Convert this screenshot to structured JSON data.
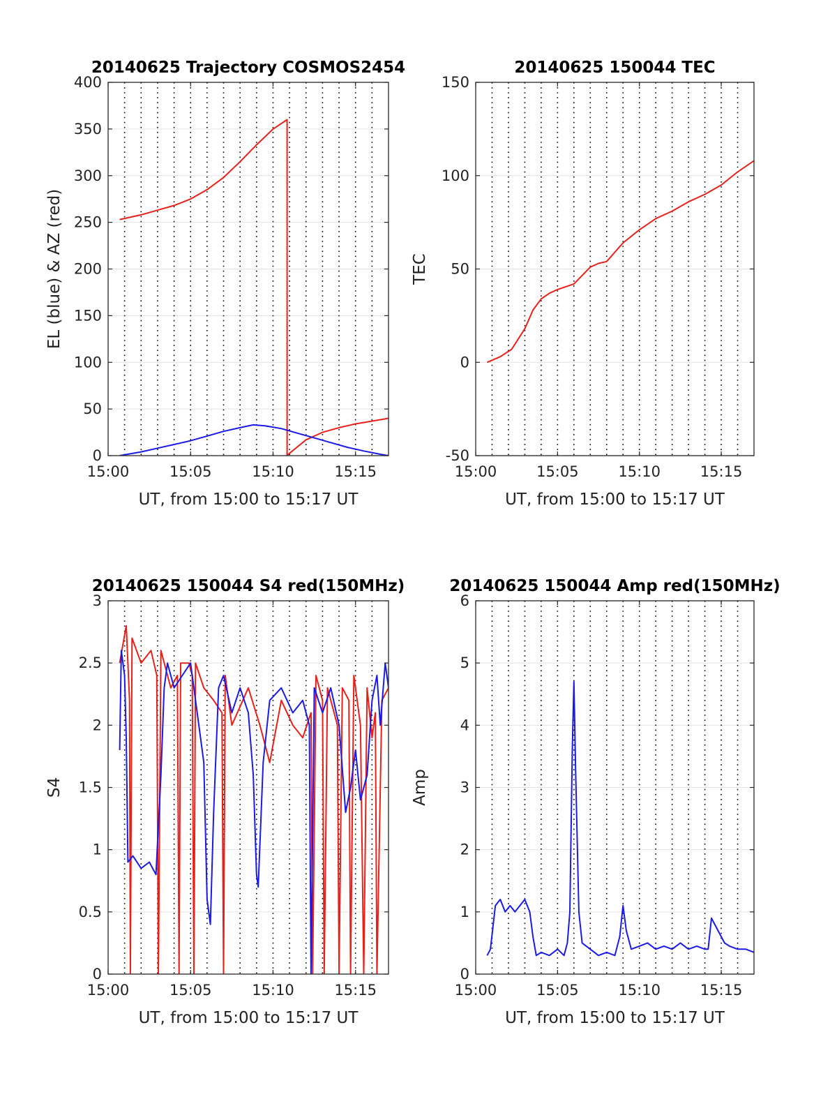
{
  "chart_data": [
    {
      "type": "line",
      "title": "20140625 Trajectory COSMOS2454",
      "xlabel": "UT, from 15:00 to 15:17 UT",
      "ylabel": "EL (blue) & AZ (red)",
      "xlim": [
        0,
        17
      ],
      "ylim": [
        0,
        400
      ],
      "xticks": [
        0,
        5,
        10,
        15
      ],
      "xticklabels": [
        "15:00",
        "15:05",
        "15:10",
        "15:15"
      ],
      "yticks": [
        0,
        50,
        100,
        150,
        200,
        250,
        300,
        350,
        400
      ],
      "yticklabels": [
        "0",
        "50",
        "100",
        "150",
        "200",
        "250",
        "300",
        "350",
        "400"
      ],
      "grid": "vertical dotted every minute, horizontal at y ticks",
      "series": [
        {
          "color": "#e8201a",
          "x": [
            0.7,
            2,
            3,
            4,
            5,
            6,
            7,
            8,
            9,
            10,
            10.85,
            10.85,
            10.86,
            12,
            13,
            14,
            15,
            16,
            17
          ],
          "y": [
            253,
            258,
            263,
            268,
            275,
            285,
            298,
            315,
            333,
            350,
            360,
            0,
            0.5,
            17,
            25,
            30,
            34,
            37,
            40
          ]
        },
        {
          "color": "#1a1ae8",
          "x": [
            0.7,
            2,
            3,
            4,
            5,
            6,
            7,
            8,
            8.8,
            9.5,
            10.5,
            11.5,
            12.5,
            13.5,
            14.5,
            15.5,
            16.5,
            17
          ],
          "y": [
            0,
            4,
            8,
            12,
            16,
            21,
            26,
            30,
            33,
            32,
            29,
            24,
            19,
            14,
            9,
            5,
            1.5,
            0
          ]
        }
      ]
    },
    {
      "type": "line",
      "title": "20140625 150044 TEC",
      "xlabel": "UT, from 15:00 to 15:17 UT",
      "ylabel": "TEC",
      "xlim": [
        0,
        17
      ],
      "ylim": [
        -50,
        150
      ],
      "xticks": [
        0,
        5,
        10,
        15
      ],
      "xticklabels": [
        "15:00",
        "15:05",
        "15:10",
        "15:15"
      ],
      "yticks": [
        -50,
        0,
        50,
        100,
        150
      ],
      "yticklabels": [
        "-50",
        "0",
        "50",
        "100",
        "150"
      ],
      "grid": "vertical dotted every minute, horizontal at y ticks",
      "series": [
        {
          "color": "#e8201a",
          "x": [
            0.7,
            1.5,
            2.2,
            3,
            3.5,
            4,
            4.5,
            5,
            6,
            7,
            7.5,
            8,
            8.5,
            9,
            10,
            11,
            12,
            13,
            14,
            15,
            16,
            17
          ],
          "y": [
            0,
            3,
            7,
            18,
            28,
            34,
            37,
            39,
            42,
            51,
            53,
            54,
            59,
            64,
            71,
            77,
            81,
            86,
            90,
            95,
            102,
            108
          ]
        }
      ]
    },
    {
      "type": "line",
      "title": "20140625 150044 S4 red(150MHz)",
      "xlabel": "UT, from 15:00 to 15:17 UT",
      "ylabel": "S4",
      "xlim": [
        0,
        17
      ],
      "ylim": [
        0,
        3
      ],
      "xticks": [
        0,
        5,
        10,
        15
      ],
      "xticklabels": [
        "15:00",
        "15:05",
        "15:10",
        "15:15"
      ],
      "yticks": [
        0,
        0.5,
        1,
        1.5,
        2,
        2.5,
        3
      ],
      "yticklabels": [
        "0",
        "0.5",
        "1",
        "1.5",
        "2",
        "2.5",
        "3"
      ],
      "grid": "vertical dotted every minute, horizontal at y ticks",
      "series": [
        {
          "color": "#e8201a",
          "x": [
            0.7,
            1.1,
            1.3,
            1.35,
            1.45,
            2,
            2.6,
            2.95,
            3.05,
            3.2,
            3.8,
            4.2,
            4.3,
            4.4,
            4.9,
            5.1,
            5.2,
            5.3,
            5.8,
            6.4,
            6.9,
            7.0,
            7.1,
            7.5,
            8.5,
            9.2,
            9.8,
            10.5,
            11.2,
            11.8,
            12.3,
            12.4,
            12.6,
            13.0,
            13.1,
            13.3,
            13.7,
            13.9,
            14.0,
            14.2,
            14.6,
            14.7,
            14.9,
            15.3,
            15.5,
            15.7,
            16.0,
            16.2,
            16.3,
            16.6,
            17
          ],
          "y": [
            2.5,
            2.8,
            2.2,
            0,
            2.7,
            2.5,
            2.6,
            2.4,
            0,
            2.6,
            2.3,
            2.4,
            0,
            2.5,
            2.5,
            2.4,
            0,
            2.5,
            2.3,
            2.2,
            2.1,
            0,
            2.4,
            2.0,
            2.3,
            2.0,
            1.7,
            2.2,
            2.0,
            1.9,
            2.1,
            0,
            2.4,
            2.2,
            0,
            2.3,
            2.1,
            2.0,
            0,
            2.3,
            2.2,
            0,
            2.4,
            2.0,
            0,
            2.3,
            1.9,
            2.1,
            0,
            2.2,
            2.3
          ]
        },
        {
          "color": "#1a1ae8",
          "x": [
            0.7,
            0.8,
            1.0,
            1.1,
            1.2,
            1.5,
            2.0,
            2.5,
            2.9,
            3.2,
            3.4,
            3.6,
            4.0,
            4.5,
            5.0,
            5.5,
            5.8,
            6.0,
            6.2,
            6.4,
            6.7,
            7.0,
            7.5,
            8.0,
            8.5,
            8.8,
            9.0,
            9.1,
            9.4,
            9.8,
            10.5,
            11.2,
            11.8,
            12.2,
            12.3,
            12.5,
            13.0,
            13.5,
            14.0,
            14.4,
            14.7,
            15.0,
            15.3,
            15.7,
            16.0,
            16.3,
            16.5,
            16.8,
            17
          ],
          "y": [
            1.8,
            2.6,
            2.4,
            1.9,
            0.9,
            0.95,
            0.85,
            0.9,
            0.8,
            1.6,
            2.3,
            2.5,
            2.3,
            2.4,
            2.5,
            2.0,
            1.7,
            0.6,
            0.4,
            1.3,
            2.3,
            2.4,
            2.1,
            2.3,
            2.1,
            1.6,
            0.8,
            0.7,
            1.7,
            2.2,
            2.3,
            2.1,
            2.2,
            2.0,
            0,
            2.3,
            2.1,
            2.3,
            2.0,
            1.3,
            1.5,
            1.8,
            1.4,
            1.6,
            2.2,
            2.4,
            2.0,
            2.5,
            2.3
          ]
        }
      ]
    },
    {
      "type": "line",
      "title": "20140625 150044 Amp red(150MHz)",
      "xlabel": "UT, from 15:00 to 15:17 UT",
      "ylabel": "Amp",
      "xlim": [
        0,
        17
      ],
      "ylim": [
        0,
        6
      ],
      "xticks": [
        0,
        5,
        10,
        15
      ],
      "xticklabels": [
        "15:00",
        "15:05",
        "15:10",
        "15:15"
      ],
      "yticks": [
        0,
        1,
        2,
        3,
        4,
        5,
        6
      ],
      "yticklabels": [
        "0",
        "1",
        "2",
        "3",
        "4",
        "5",
        "6"
      ],
      "grid": "vertical dotted every minute, horizontal at y ticks",
      "series": [
        {
          "color": "#1a1ae8",
          "x": [
            0.7,
            0.9,
            1.2,
            1.5,
            1.8,
            2.1,
            2.4,
            2.7,
            3.0,
            3.3,
            3.5,
            3.7,
            4.0,
            4.5,
            5.0,
            5.4,
            5.6,
            5.75,
            5.9,
            6.0,
            6.1,
            6.3,
            6.5,
            7.0,
            7.5,
            8.0,
            8.5,
            8.8,
            9.0,
            9.2,
            9.5,
            10.0,
            10.5,
            11.0,
            11.5,
            12.0,
            12.5,
            13.0,
            13.5,
            14.0,
            14.2,
            14.4,
            14.8,
            15.0,
            15.2,
            15.5,
            16.0,
            16.5,
            17
          ],
          "y": [
            0.3,
            0.4,
            1.1,
            1.2,
            1.0,
            1.1,
            1.0,
            1.1,
            1.2,
            1.0,
            0.6,
            0.3,
            0.35,
            0.3,
            0.4,
            0.3,
            0.5,
            1.0,
            3.6,
            4.7,
            3.3,
            1.0,
            0.5,
            0.4,
            0.3,
            0.35,
            0.3,
            0.6,
            1.1,
            0.7,
            0.4,
            0.45,
            0.5,
            0.4,
            0.45,
            0.4,
            0.5,
            0.4,
            0.45,
            0.4,
            0.4,
            0.9,
            0.7,
            0.6,
            0.5,
            0.45,
            0.4,
            0.4,
            0.35
          ]
        }
      ]
    }
  ]
}
